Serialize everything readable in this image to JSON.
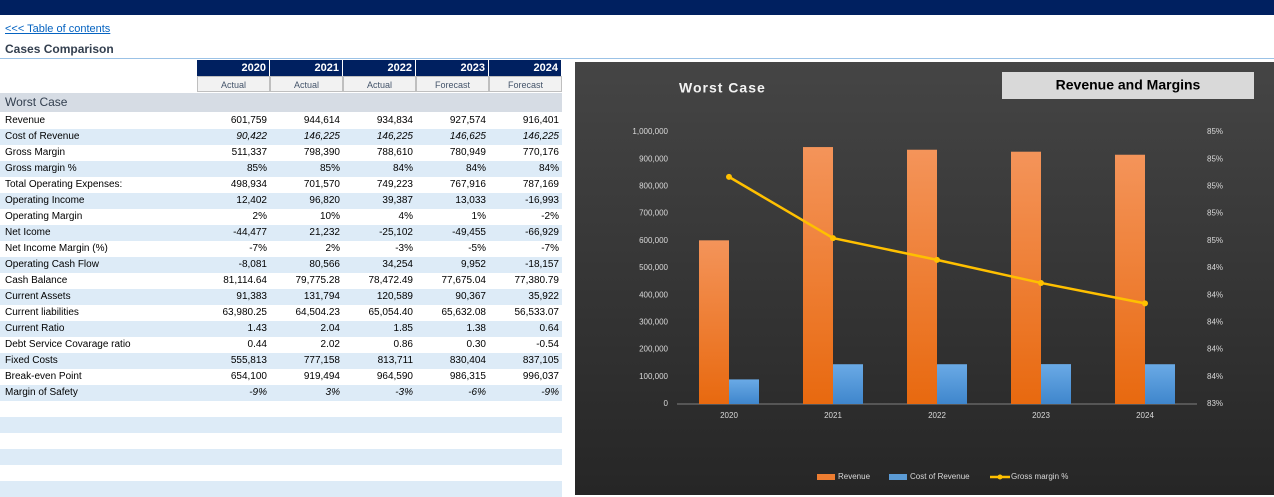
{
  "nav": {
    "link": "<<< Table of contents",
    "title": "Cases Comparison"
  },
  "table": {
    "years": [
      "2020",
      "2021",
      "2022",
      "2023",
      "2024"
    ],
    "kinds": [
      "Actual",
      "Actual",
      "Actual",
      "Forecast",
      "Forecast"
    ],
    "section": "Worst Case",
    "rows": [
      [
        "Revenue",
        "601,759",
        "944,614",
        "934,834",
        "927,574",
        "916,401"
      ],
      [
        "Cost of Revenue",
        "90,422",
        "146,225",
        "146,225",
        "146,625",
        "146,225"
      ],
      [
        "Gross Margin",
        "511,337",
        "798,390",
        "788,610",
        "780,949",
        "770,176"
      ],
      [
        "Gross margin %",
        "85%",
        "85%",
        "84%",
        "84%",
        "84%"
      ],
      [
        "Total Operating Expenses:",
        "498,934",
        "701,570",
        "749,223",
        "767,916",
        "787,169"
      ],
      [
        "Operating Income",
        "12,402",
        "96,820",
        "39,387",
        "13,033",
        "-16,993"
      ],
      [
        "Operating Margin",
        "2%",
        "10%",
        "4%",
        "1%",
        "-2%"
      ],
      [
        "Net Icome",
        "-44,477",
        "21,232",
        "-25,102",
        "-49,455",
        "-66,929"
      ],
      [
        "Net Income Margin (%)",
        "-7%",
        "2%",
        "-3%",
        "-5%",
        "-7%"
      ],
      [
        "Operating Cash Flow",
        "-8,081",
        "80,566",
        "34,254",
        "9,952",
        "-18,157"
      ],
      [
        "Cash Balance",
        "81,114.64",
        "79,775.28",
        "78,472.49",
        "77,675.04",
        "77,380.79"
      ],
      [
        "Current Assets",
        "91,383",
        "131,794",
        "120,589",
        "90,367",
        "35,922"
      ],
      [
        "Current liabilities",
        "63,980.25",
        "64,504.23",
        "65,054.40",
        "65,632.08",
        "56,533.07"
      ],
      [
        "Current Ratio",
        "1.43",
        "2.04",
        "1.85",
        "1.38",
        "0.64"
      ],
      [
        "Debt Service Covarage ratio",
        "0.44",
        "2.02",
        "0.86",
        "0.30",
        "-0.54"
      ],
      [
        "Fixed Costs",
        "555,813",
        "777,158",
        "813,711",
        "830,404",
        "837,105"
      ],
      [
        "Break-even Point",
        "654,100",
        "919,494",
        "964,590",
        "986,315",
        "996,037"
      ],
      [
        "Margin of Safety",
        "-9%",
        "3%",
        "-3%",
        "-6%",
        "-9%"
      ]
    ]
  },
  "chart_data": {
    "type": "bar",
    "title": "Worst Case",
    "annotation": "Revenue and Margins",
    "categories": [
      "2020",
      "2021",
      "2022",
      "2023",
      "2024"
    ],
    "series": [
      {
        "name": "Revenue",
        "color": "#ed7d31",
        "values": [
          601759,
          944614,
          934834,
          927574,
          916401
        ]
      },
      {
        "name": "Cost of Revenue",
        "color": "#5b9bd5",
        "values": [
          90422,
          146225,
          146225,
          146625,
          146225
        ]
      },
      {
        "name": "Gross margin %",
        "color": "#ffc000",
        "type": "line",
        "axis": "y2",
        "values": [
          0.8497,
          0.8452,
          0.8436,
          0.8419,
          0.8404
        ]
      }
    ],
    "ylim": [
      0,
      1000000
    ],
    "yticks": [
      0,
      {
        "value": 100000,
        "label": "100,000"
      },
      {
        "value": 200000,
        "label": "200,000"
      },
      {
        "value": 300000,
        "label": "300,000"
      },
      {
        "value": 400000,
        "label": "400,000"
      },
      {
        "value": 500000,
        "label": "500,000"
      },
      {
        "value": 600000,
        "label": "600,000"
      },
      {
        "value": 700000,
        "label": "700,000"
      },
      {
        "value": 800000,
        "label": "800,000"
      },
      {
        "value": 900000,
        "label": "900,000"
      },
      {
        "value": 1000000,
        "label": "1,000,000"
      }
    ],
    "y2lim": [
      0.833,
      0.853
    ],
    "y2ticks": [
      {
        "value": 0.833,
        "label": "83%"
      },
      {
        "value": 0.835,
        "label": "84%"
      },
      {
        "value": 0.837,
        "label": "84%"
      },
      {
        "value": 0.839,
        "label": "84%"
      },
      {
        "value": 0.841,
        "label": "84%"
      },
      {
        "value": 0.843,
        "label": "84%"
      },
      {
        "value": 0.845,
        "label": "85%"
      },
      {
        "value": 0.847,
        "label": "85%"
      },
      {
        "value": 0.849,
        "label": "85%"
      },
      {
        "value": 0.851,
        "label": "85%"
      },
      {
        "value": 0.853,
        "label": "85%"
      }
    ],
    "legend": "bottom"
  }
}
